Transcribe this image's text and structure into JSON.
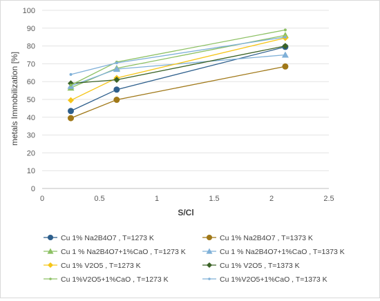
{
  "chart_data": {
    "type": "line",
    "title": "",
    "xlabel": "S/Cl",
    "ylabel": "metals Immobilization [%]",
    "xlim": [
      0,
      2.5
    ],
    "ylim": [
      0,
      100
    ],
    "x_ticks": [
      0,
      0.5,
      1,
      1.5,
      2,
      2.5
    ],
    "y_ticks": [
      0,
      10,
      20,
      30,
      40,
      50,
      60,
      70,
      80,
      90,
      100
    ],
    "grid": "horizontal",
    "legend_position": "bottom",
    "x": [
      0.25,
      0.65,
      2.12
    ],
    "series": [
      {
        "name": "Cu 1% Na2B4O7 , T=1273 K",
        "values": [
          43.5,
          55.5,
          79.5
        ],
        "color": "#2e5f8c",
        "marker": "circle"
      },
      {
        "name": "Cu 1% Na2B4O7 , T=1373 K",
        "values": [
          39.5,
          49.8,
          68.5
        ],
        "color": "#a07818",
        "marker": "circle"
      },
      {
        "name": "Cu 1 % Na2B4O7+1%CaO , T=1273 K",
        "values": [
          56.5,
          67.5,
          86.0
        ],
        "color": "#8cc063",
        "marker": "triangle"
      },
      {
        "name": "Cu 1 % Na2B4O7+1%CaO , T=1373 K",
        "values": [
          57.5,
          67.0,
          75.0
        ],
        "color": "#7fb0d8",
        "marker": "triangle"
      },
      {
        "name": "Cu 1% V2O5 , T=1273 K",
        "values": [
          49.5,
          62.0,
          84.5
        ],
        "color": "#f5c518",
        "marker": "diamond"
      },
      {
        "name": "Cu 1% V2O5 , T=1373 K",
        "values": [
          59.0,
          61.0,
          80.0
        ],
        "color": "#3b6226",
        "marker": "diamond"
      },
      {
        "name": "Cu 1%V2O5+1%CaO , T=1273 K",
        "values": [
          58.0,
          71.0,
          89.0
        ],
        "color": "#8cc063",
        "marker": "dot"
      },
      {
        "name": "Cu 1%V2O5+1%CaO , T=1373 K",
        "values": [
          64.0,
          70.5,
          85.0
        ],
        "color": "#7fb0d8",
        "marker": "dot"
      }
    ]
  }
}
